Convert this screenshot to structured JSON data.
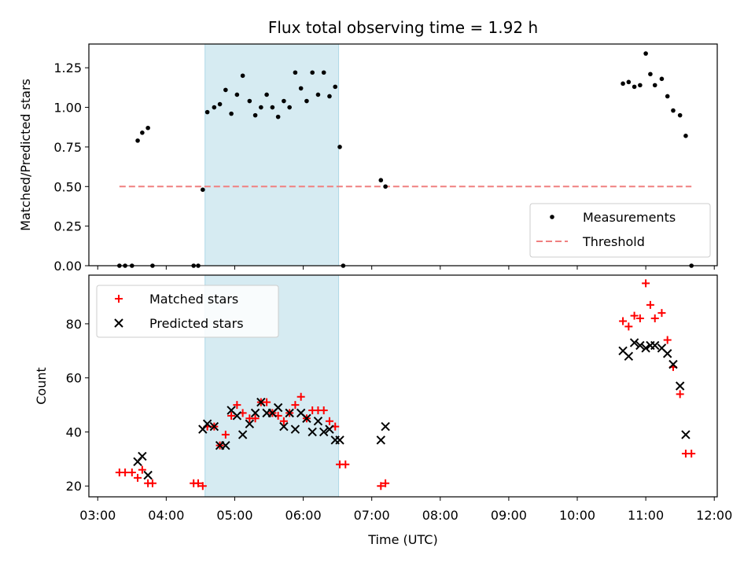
{
  "chart_data": [
    {
      "type": "scatter",
      "title": "Flux total observing time = 1.92 h",
      "xlabel": "",
      "ylabel": "Matched/Predicted stars",
      "xlim": [
        "03:00",
        "12:00"
      ],
      "ylim": [
        0,
        1.4
      ],
      "yticks": [
        "0.00",
        "0.25",
        "0.50",
        "0.75",
        "1.00",
        "1.25"
      ],
      "shaded_region": {
        "start": "04:34",
        "end": "06:31"
      },
      "legend_position": "lower-right",
      "series": [
        {
          "name": "Measurements",
          "marker": "dot",
          "color": "#000000",
          "points": [
            [
              "03:19",
              0
            ],
            [
              "03:24",
              0
            ],
            [
              "03:30",
              0
            ],
            [
              "03:48",
              0
            ],
            [
              "04:24",
              0
            ],
            [
              "04:28",
              0
            ],
            [
              "03:35",
              0.79
            ],
            [
              "03:39",
              0.84
            ],
            [
              "03:44",
              0.87
            ],
            [
              "04:32",
              0.48
            ],
            [
              "04:36",
              0.97
            ],
            [
              "04:42",
              1.0
            ],
            [
              "04:47",
              1.02
            ],
            [
              "04:52",
              1.11
            ],
            [
              "04:57",
              0.96
            ],
            [
              "05:02",
              1.08
            ],
            [
              "05:07",
              1.2
            ],
            [
              "05:13",
              1.04
            ],
            [
              "05:18",
              0.95
            ],
            [
              "05:23",
              1.0
            ],
            [
              "05:28",
              1.08
            ],
            [
              "05:33",
              1.0
            ],
            [
              "05:38",
              0.94
            ],
            [
              "05:43",
              1.04
            ],
            [
              "05:48",
              1.0
            ],
            [
              "05:53",
              1.22
            ],
            [
              "05:58",
              1.12
            ],
            [
              "06:03",
              1.04
            ],
            [
              "06:08",
              1.22
            ],
            [
              "06:13",
              1.08
            ],
            [
              "06:18",
              1.22
            ],
            [
              "06:23",
              1.07
            ],
            [
              "06:28",
              1.13
            ],
            [
              "06:32",
              0.75
            ],
            [
              "06:35",
              0
            ],
            [
              "07:08",
              0.54
            ],
            [
              "07:12",
              0.5
            ],
            [
              "10:40",
              1.15
            ],
            [
              "10:45",
              1.16
            ],
            [
              "10:50",
              1.13
            ],
            [
              "10:55",
              1.14
            ],
            [
              "11:00",
              1.34
            ],
            [
              "11:04",
              1.21
            ],
            [
              "11:08",
              1.14
            ],
            [
              "11:14",
              1.18
            ],
            [
              "11:19",
              1.07
            ],
            [
              "11:24",
              0.98
            ],
            [
              "11:30",
              0.95
            ],
            [
              "11:35",
              0.82
            ],
            [
              "11:40",
              0
            ]
          ]
        },
        {
          "name": "Threshold",
          "marker": "dashed-line",
          "color": "#f08080",
          "points": [
            [
              "03:19",
              0.5
            ],
            [
              "11:40",
              0.5
            ]
          ]
        }
      ]
    },
    {
      "type": "scatter",
      "title": "",
      "xlabel": "Time (UTC)",
      "ylabel": "Count",
      "xlim": [
        "03:00",
        "12:00"
      ],
      "ylim": [
        16,
        98
      ],
      "yticks": [
        "20",
        "40",
        "60",
        "80"
      ],
      "xticks": [
        "03:00",
        "04:00",
        "05:00",
        "06:00",
        "07:00",
        "08:00",
        "09:00",
        "10:00",
        "11:00",
        "12:00"
      ],
      "shaded_region": {
        "start": "04:34",
        "end": "06:31"
      },
      "legend_position": "upper-left",
      "series": [
        {
          "name": "Matched stars",
          "marker": "plus",
          "color": "#ff0000",
          "points": [
            [
              "03:19",
              25
            ],
            [
              "03:24",
              25
            ],
            [
              "03:30",
              25
            ],
            [
              "03:35",
              23
            ],
            [
              "03:39",
              26
            ],
            [
              "03:44",
              21
            ],
            [
              "03:48",
              21
            ],
            [
              "04:24",
              21
            ],
            [
              "04:28",
              21
            ],
            [
              "04:32",
              20
            ],
            [
              "04:36",
              42
            ],
            [
              "04:42",
              42
            ],
            [
              "04:47",
              35
            ],
            [
              "04:52",
              39
            ],
            [
              "04:57",
              46
            ],
            [
              "05:02",
              50
            ],
            [
              "05:07",
              47
            ],
            [
              "05:13",
              45
            ],
            [
              "05:18",
              45
            ],
            [
              "05:23",
              51
            ],
            [
              "05:28",
              51
            ],
            [
              "05:33",
              47
            ],
            [
              "05:38",
              46
            ],
            [
              "05:43",
              44
            ],
            [
              "05:48",
              47
            ],
            [
              "05:53",
              50
            ],
            [
              "05:58",
              53
            ],
            [
              "06:03",
              45
            ],
            [
              "06:08",
              48
            ],
            [
              "06:13",
              48
            ],
            [
              "06:18",
              48
            ],
            [
              "06:23",
              44
            ],
            [
              "06:28",
              42
            ],
            [
              "06:32",
              28
            ],
            [
              "06:37",
              28
            ],
            [
              "07:08",
              20
            ],
            [
              "07:12",
              21
            ],
            [
              "10:40",
              81
            ],
            [
              "10:45",
              79
            ],
            [
              "10:50",
              83
            ],
            [
              "10:55",
              82
            ],
            [
              "11:00",
              95
            ],
            [
              "11:04",
              87
            ],
            [
              "11:08",
              82
            ],
            [
              "11:14",
              84
            ],
            [
              "11:19",
              74
            ],
            [
              "11:24",
              64
            ],
            [
              "11:30",
              54
            ],
            [
              "11:35",
              32
            ],
            [
              "11:40",
              32
            ]
          ]
        },
        {
          "name": "Predicted stars",
          "marker": "x",
          "color": "#000000",
          "points": [
            [
              "03:35",
              29
            ],
            [
              "03:39",
              31
            ],
            [
              "03:44",
              24
            ],
            [
              "04:32",
              41
            ],
            [
              "04:36",
              43
            ],
            [
              "04:42",
              42
            ],
            [
              "04:47",
              35
            ],
            [
              "04:52",
              35
            ],
            [
              "04:57",
              48
            ],
            [
              "05:02",
              46
            ],
            [
              "05:07",
              39
            ],
            [
              "05:13",
              43
            ],
            [
              "05:18",
              47
            ],
            [
              "05:23",
              51
            ],
            [
              "05:28",
              47
            ],
            [
              "05:33",
              47
            ],
            [
              "05:38",
              49
            ],
            [
              "05:43",
              42
            ],
            [
              "05:48",
              47
            ],
            [
              "05:53",
              41
            ],
            [
              "05:58",
              47
            ],
            [
              "06:03",
              45
            ],
            [
              "06:08",
              40
            ],
            [
              "06:13",
              44
            ],
            [
              "06:18",
              40
            ],
            [
              "06:23",
              41
            ],
            [
              "06:28",
              37
            ],
            [
              "06:32",
              37
            ],
            [
              "07:08",
              37
            ],
            [
              "07:12",
              42
            ],
            [
              "10:40",
              70
            ],
            [
              "10:45",
              68
            ],
            [
              "10:50",
              73
            ],
            [
              "10:55",
              72
            ],
            [
              "11:00",
              71
            ],
            [
              "11:04",
              72
            ],
            [
              "11:08",
              72
            ],
            [
              "11:14",
              71
            ],
            [
              "11:19",
              69
            ],
            [
              "11:24",
              65
            ],
            [
              "11:30",
              57
            ],
            [
              "11:35",
              39
            ]
          ]
        }
      ]
    }
  ]
}
